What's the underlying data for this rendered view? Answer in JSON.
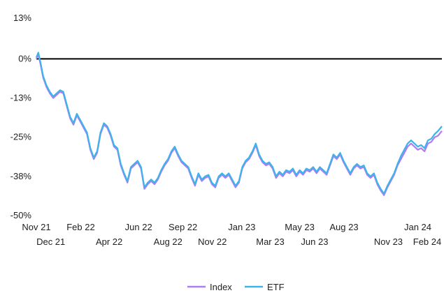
{
  "chart_data": {
    "type": "line",
    "title": "",
    "xlabel": "",
    "ylabel": "",
    "ylim": [
      -50,
      13
    ],
    "y_ticks": [
      "13%",
      "0%",
      "-13%",
      "-25%",
      "-38%",
      "-50%"
    ],
    "y_tick_values": [
      13,
      0,
      -12.5,
      -25,
      -37.5,
      -50
    ],
    "zero_line": true,
    "grid": false,
    "legend_position": "bottom-center",
    "x_ticks_row1": [
      {
        "label": "Nov 21",
        "date": "2021-11-01"
      },
      {
        "label": "Feb 22",
        "date": "2022-02-01"
      },
      {
        "label": "Jun 22",
        "date": "2022-06-01"
      },
      {
        "label": "Sep 22",
        "date": "2022-09-01"
      },
      {
        "label": "Jan 23",
        "date": "2023-01-01"
      },
      {
        "label": "May 23",
        "date": "2023-05-01"
      },
      {
        "label": "Aug 23",
        "date": "2023-08-01"
      },
      {
        "label": "Jan 24",
        "date": "2024-01-01"
      }
    ],
    "x_ticks_row2": [
      {
        "label": "Dec 21",
        "date": "2021-12-01"
      },
      {
        "label": "Apr 22",
        "date": "2022-04-01"
      },
      {
        "label": "Aug 22",
        "date": "2022-08-01"
      },
      {
        "label": "Nov 22",
        "date": "2022-11-01"
      },
      {
        "label": "Mar 23",
        "date": "2023-03-01"
      },
      {
        "label": "Jun 23",
        "date": "2023-06-01"
      },
      {
        "label": "Nov 23",
        "date": "2023-11-01"
      },
      {
        "label": "Feb 24",
        "date": "2024-02-01"
      }
    ],
    "x_range": [
      "2021-11-01",
      "2024-02-20"
    ],
    "series": [
      {
        "name": "Index",
        "color": "#b07cf5",
        "points": [
          [
            "2021-11-01",
            0
          ],
          [
            "2021-11-05",
            1.5
          ],
          [
            "2021-11-10",
            -2
          ],
          [
            "2021-11-15",
            -6
          ],
          [
            "2021-11-22",
            -9
          ],
          [
            "2021-11-29",
            -11
          ],
          [
            "2021-12-06",
            -12.5
          ],
          [
            "2021-12-13",
            -11.5
          ],
          [
            "2021-12-20",
            -10.5
          ],
          [
            "2021-12-27",
            -11
          ],
          [
            "2022-01-03",
            -15
          ],
          [
            "2022-01-10",
            -19
          ],
          [
            "2022-01-17",
            -21
          ],
          [
            "2022-01-24",
            -18
          ],
          [
            "2022-01-31",
            -20
          ],
          [
            "2022-02-07",
            -22
          ],
          [
            "2022-02-14",
            -24
          ],
          [
            "2022-02-21",
            -29
          ],
          [
            "2022-02-28",
            -32
          ],
          [
            "2022-03-07",
            -30
          ],
          [
            "2022-03-14",
            -24
          ],
          [
            "2022-03-21",
            -21
          ],
          [
            "2022-03-28",
            -22
          ],
          [
            "2022-04-04",
            -24.5
          ],
          [
            "2022-04-11",
            -28
          ],
          [
            "2022-04-18",
            -29
          ],
          [
            "2022-04-25",
            -34
          ],
          [
            "2022-05-02",
            -37
          ],
          [
            "2022-05-09",
            -39.5
          ],
          [
            "2022-05-16",
            -35
          ],
          [
            "2022-05-23",
            -34
          ],
          [
            "2022-05-30",
            -33
          ],
          [
            "2022-06-06",
            -35
          ],
          [
            "2022-06-13",
            -41.5
          ],
          [
            "2022-06-20",
            -40
          ],
          [
            "2022-06-27",
            -39
          ],
          [
            "2022-07-04",
            -40
          ],
          [
            "2022-07-11",
            -38.5
          ],
          [
            "2022-07-18",
            -36
          ],
          [
            "2022-07-25",
            -34
          ],
          [
            "2022-08-01",
            -32.5
          ],
          [
            "2022-08-08",
            -30
          ],
          [
            "2022-08-15",
            -28.5
          ],
          [
            "2022-08-22",
            -31
          ],
          [
            "2022-08-29",
            -33
          ],
          [
            "2022-09-05",
            -34
          ],
          [
            "2022-09-12",
            -35
          ],
          [
            "2022-09-19",
            -38
          ],
          [
            "2022-09-26",
            -40.5
          ],
          [
            "2022-10-03",
            -37
          ],
          [
            "2022-10-10",
            -39
          ],
          [
            "2022-10-17",
            -38
          ],
          [
            "2022-10-24",
            -37.5
          ],
          [
            "2022-10-31",
            -40
          ],
          [
            "2022-11-07",
            -41
          ],
          [
            "2022-11-14",
            -38
          ],
          [
            "2022-11-21",
            -37
          ],
          [
            "2022-11-28",
            -38
          ],
          [
            "2022-12-05",
            -37
          ],
          [
            "2022-12-12",
            -39
          ],
          [
            "2022-12-19",
            -41
          ],
          [
            "2022-12-26",
            -39.5
          ],
          [
            "2023-01-02",
            -35
          ],
          [
            "2023-01-09",
            -33
          ],
          [
            "2023-01-16",
            -32
          ],
          [
            "2023-01-23",
            -30
          ],
          [
            "2023-01-30",
            -27.5
          ],
          [
            "2023-02-06",
            -31
          ],
          [
            "2023-02-13",
            -33
          ],
          [
            "2023-02-20",
            -34
          ],
          [
            "2023-02-27",
            -33.5
          ],
          [
            "2023-03-06",
            -35
          ],
          [
            "2023-03-13",
            -38
          ],
          [
            "2023-03-20",
            -36.5
          ],
          [
            "2023-03-27",
            -37.5
          ],
          [
            "2023-04-03",
            -36
          ],
          [
            "2023-04-10",
            -36.5
          ],
          [
            "2023-04-17",
            -35.5
          ],
          [
            "2023-04-24",
            -37.5
          ],
          [
            "2023-05-01",
            -36
          ],
          [
            "2023-05-08",
            -37
          ],
          [
            "2023-05-15",
            -35.5
          ],
          [
            "2023-05-22",
            -36
          ],
          [
            "2023-05-29",
            -35
          ],
          [
            "2023-06-05",
            -36.5
          ],
          [
            "2023-06-12",
            -35
          ],
          [
            "2023-06-19",
            -36
          ],
          [
            "2023-06-26",
            -37
          ],
          [
            "2023-07-03",
            -34
          ],
          [
            "2023-07-10",
            -31
          ],
          [
            "2023-07-17",
            -32
          ],
          [
            "2023-07-24",
            -30.5
          ],
          [
            "2023-07-31",
            -33
          ],
          [
            "2023-08-07",
            -35
          ],
          [
            "2023-08-14",
            -37
          ],
          [
            "2023-08-21",
            -35
          ],
          [
            "2023-08-28",
            -34
          ],
          [
            "2023-09-04",
            -35
          ],
          [
            "2023-09-11",
            -34.5
          ],
          [
            "2023-09-18",
            -37
          ],
          [
            "2023-09-25",
            -38
          ],
          [
            "2023-10-02",
            -37
          ],
          [
            "2023-10-09",
            -40
          ],
          [
            "2023-10-16",
            -42
          ],
          [
            "2023-10-23",
            -43.5
          ],
          [
            "2023-10-30",
            -41
          ],
          [
            "2023-11-06",
            -39
          ],
          [
            "2023-11-13",
            -37
          ],
          [
            "2023-11-20",
            -34
          ],
          [
            "2023-11-27",
            -32
          ],
          [
            "2023-12-04",
            -30
          ],
          [
            "2023-12-11",
            -28
          ],
          [
            "2023-12-18",
            -27
          ],
          [
            "2023-12-25",
            -28
          ],
          [
            "2024-01-01",
            -29
          ],
          [
            "2024-01-08",
            -28.5
          ],
          [
            "2024-01-15",
            -29.5
          ],
          [
            "2024-01-22",
            -27
          ],
          [
            "2024-01-29",
            -26.5
          ],
          [
            "2024-02-05",
            -25
          ],
          [
            "2024-02-12",
            -24.5
          ],
          [
            "2024-02-20",
            -23
          ]
        ]
      },
      {
        "name": "ETF",
        "color": "#3eb3ea",
        "points": [
          [
            "2021-11-01",
            0.5
          ],
          [
            "2021-11-05",
            2
          ],
          [
            "2021-11-10",
            -1.5
          ],
          [
            "2021-11-15",
            -5.5
          ],
          [
            "2021-11-22",
            -8.5
          ],
          [
            "2021-11-29",
            -10.5
          ],
          [
            "2021-12-06",
            -12
          ],
          [
            "2021-12-13",
            -11
          ],
          [
            "2021-12-20",
            -10
          ],
          [
            "2021-12-27",
            -10.5
          ],
          [
            "2022-01-03",
            -14.5
          ],
          [
            "2022-01-10",
            -18.5
          ],
          [
            "2022-01-17",
            -20.5
          ],
          [
            "2022-01-24",
            -17.5
          ],
          [
            "2022-01-31",
            -19.5
          ],
          [
            "2022-02-07",
            -21.5
          ],
          [
            "2022-02-14",
            -23.5
          ],
          [
            "2022-02-21",
            -28.5
          ],
          [
            "2022-02-28",
            -31.5
          ],
          [
            "2022-03-07",
            -29.5
          ],
          [
            "2022-03-14",
            -23.5
          ],
          [
            "2022-03-21",
            -20.5
          ],
          [
            "2022-03-28",
            -21.5
          ],
          [
            "2022-04-04",
            -24
          ],
          [
            "2022-04-11",
            -27.5
          ],
          [
            "2022-04-18",
            -28.5
          ],
          [
            "2022-04-25",
            -33.5
          ],
          [
            "2022-05-02",
            -36.5
          ],
          [
            "2022-05-09",
            -39
          ],
          [
            "2022-05-16",
            -34.5
          ],
          [
            "2022-05-23",
            -33.5
          ],
          [
            "2022-05-30",
            -32.5
          ],
          [
            "2022-06-06",
            -34.5
          ],
          [
            "2022-06-13",
            -41
          ],
          [
            "2022-06-20",
            -39.5
          ],
          [
            "2022-06-27",
            -38.5
          ],
          [
            "2022-07-04",
            -39.5
          ],
          [
            "2022-07-11",
            -38
          ],
          [
            "2022-07-18",
            -35.5
          ],
          [
            "2022-07-25",
            -33.5
          ],
          [
            "2022-08-01",
            -32
          ],
          [
            "2022-08-08",
            -29.5
          ],
          [
            "2022-08-15",
            -28
          ],
          [
            "2022-08-22",
            -30.5
          ],
          [
            "2022-08-29",
            -32.5
          ],
          [
            "2022-09-05",
            -33.5
          ],
          [
            "2022-09-12",
            -34.5
          ],
          [
            "2022-09-19",
            -37.5
          ],
          [
            "2022-09-26",
            -40
          ],
          [
            "2022-10-03",
            -36.5
          ],
          [
            "2022-10-10",
            -38.5
          ],
          [
            "2022-10-17",
            -37.5
          ],
          [
            "2022-10-24",
            -37
          ],
          [
            "2022-10-31",
            -39.5
          ],
          [
            "2022-11-07",
            -40.5
          ],
          [
            "2022-11-14",
            -37.5
          ],
          [
            "2022-11-21",
            -36.5
          ],
          [
            "2022-11-28",
            -37.5
          ],
          [
            "2022-12-05",
            -36.5
          ],
          [
            "2022-12-12",
            -38.5
          ],
          [
            "2022-12-19",
            -40.5
          ],
          [
            "2022-12-26",
            -39
          ],
          [
            "2023-01-02",
            -34.5
          ],
          [
            "2023-01-09",
            -32.5
          ],
          [
            "2023-01-16",
            -31.5
          ],
          [
            "2023-01-23",
            -29.5
          ],
          [
            "2023-01-30",
            -27
          ],
          [
            "2023-02-06",
            -30.5
          ],
          [
            "2023-02-13",
            -32.5
          ],
          [
            "2023-02-20",
            -33.5
          ],
          [
            "2023-02-27",
            -33
          ],
          [
            "2023-03-06",
            -34.5
          ],
          [
            "2023-03-13",
            -37.5
          ],
          [
            "2023-03-20",
            -36
          ],
          [
            "2023-03-27",
            -37
          ],
          [
            "2023-04-03",
            -35.5
          ],
          [
            "2023-04-10",
            -36
          ],
          [
            "2023-04-17",
            -35
          ],
          [
            "2023-04-24",
            -37
          ],
          [
            "2023-05-01",
            -35.5
          ],
          [
            "2023-05-08",
            -36.5
          ],
          [
            "2023-05-15",
            -35
          ],
          [
            "2023-05-22",
            -35.5
          ],
          [
            "2023-05-29",
            -34.5
          ],
          [
            "2023-06-05",
            -36
          ],
          [
            "2023-06-12",
            -34.5
          ],
          [
            "2023-06-19",
            -35.5
          ],
          [
            "2023-06-26",
            -36.5
          ],
          [
            "2023-07-03",
            -33.5
          ],
          [
            "2023-07-10",
            -30.5
          ],
          [
            "2023-07-17",
            -31.5
          ],
          [
            "2023-07-24",
            -30
          ],
          [
            "2023-07-31",
            -32.5
          ],
          [
            "2023-08-07",
            -34.5
          ],
          [
            "2023-08-14",
            -36.5
          ],
          [
            "2023-08-21",
            -34.5
          ],
          [
            "2023-08-28",
            -33.5
          ],
          [
            "2023-09-04",
            -34.5
          ],
          [
            "2023-09-11",
            -34
          ],
          [
            "2023-09-18",
            -36.5
          ],
          [
            "2023-09-25",
            -37.5
          ],
          [
            "2023-10-02",
            -36.5
          ],
          [
            "2023-10-09",
            -39.5
          ],
          [
            "2023-10-16",
            -41.5
          ],
          [
            "2023-10-23",
            -43
          ],
          [
            "2023-10-30",
            -40.5
          ],
          [
            "2023-11-06",
            -38.5
          ],
          [
            "2023-11-13",
            -36.5
          ],
          [
            "2023-11-20",
            -33.5
          ],
          [
            "2023-11-27",
            -31
          ],
          [
            "2023-12-04",
            -29
          ],
          [
            "2023-12-11",
            -27
          ],
          [
            "2023-12-18",
            -26
          ],
          [
            "2023-12-25",
            -27
          ],
          [
            "2024-01-01",
            -28
          ],
          [
            "2024-01-08",
            -27.5
          ],
          [
            "2024-01-15",
            -28.5
          ],
          [
            "2024-01-22",
            -26
          ],
          [
            "2024-01-29",
            -25.5
          ],
          [
            "2024-02-05",
            -24
          ],
          [
            "2024-02-12",
            -23
          ],
          [
            "2024-02-20",
            -21.5
          ]
        ]
      }
    ]
  }
}
